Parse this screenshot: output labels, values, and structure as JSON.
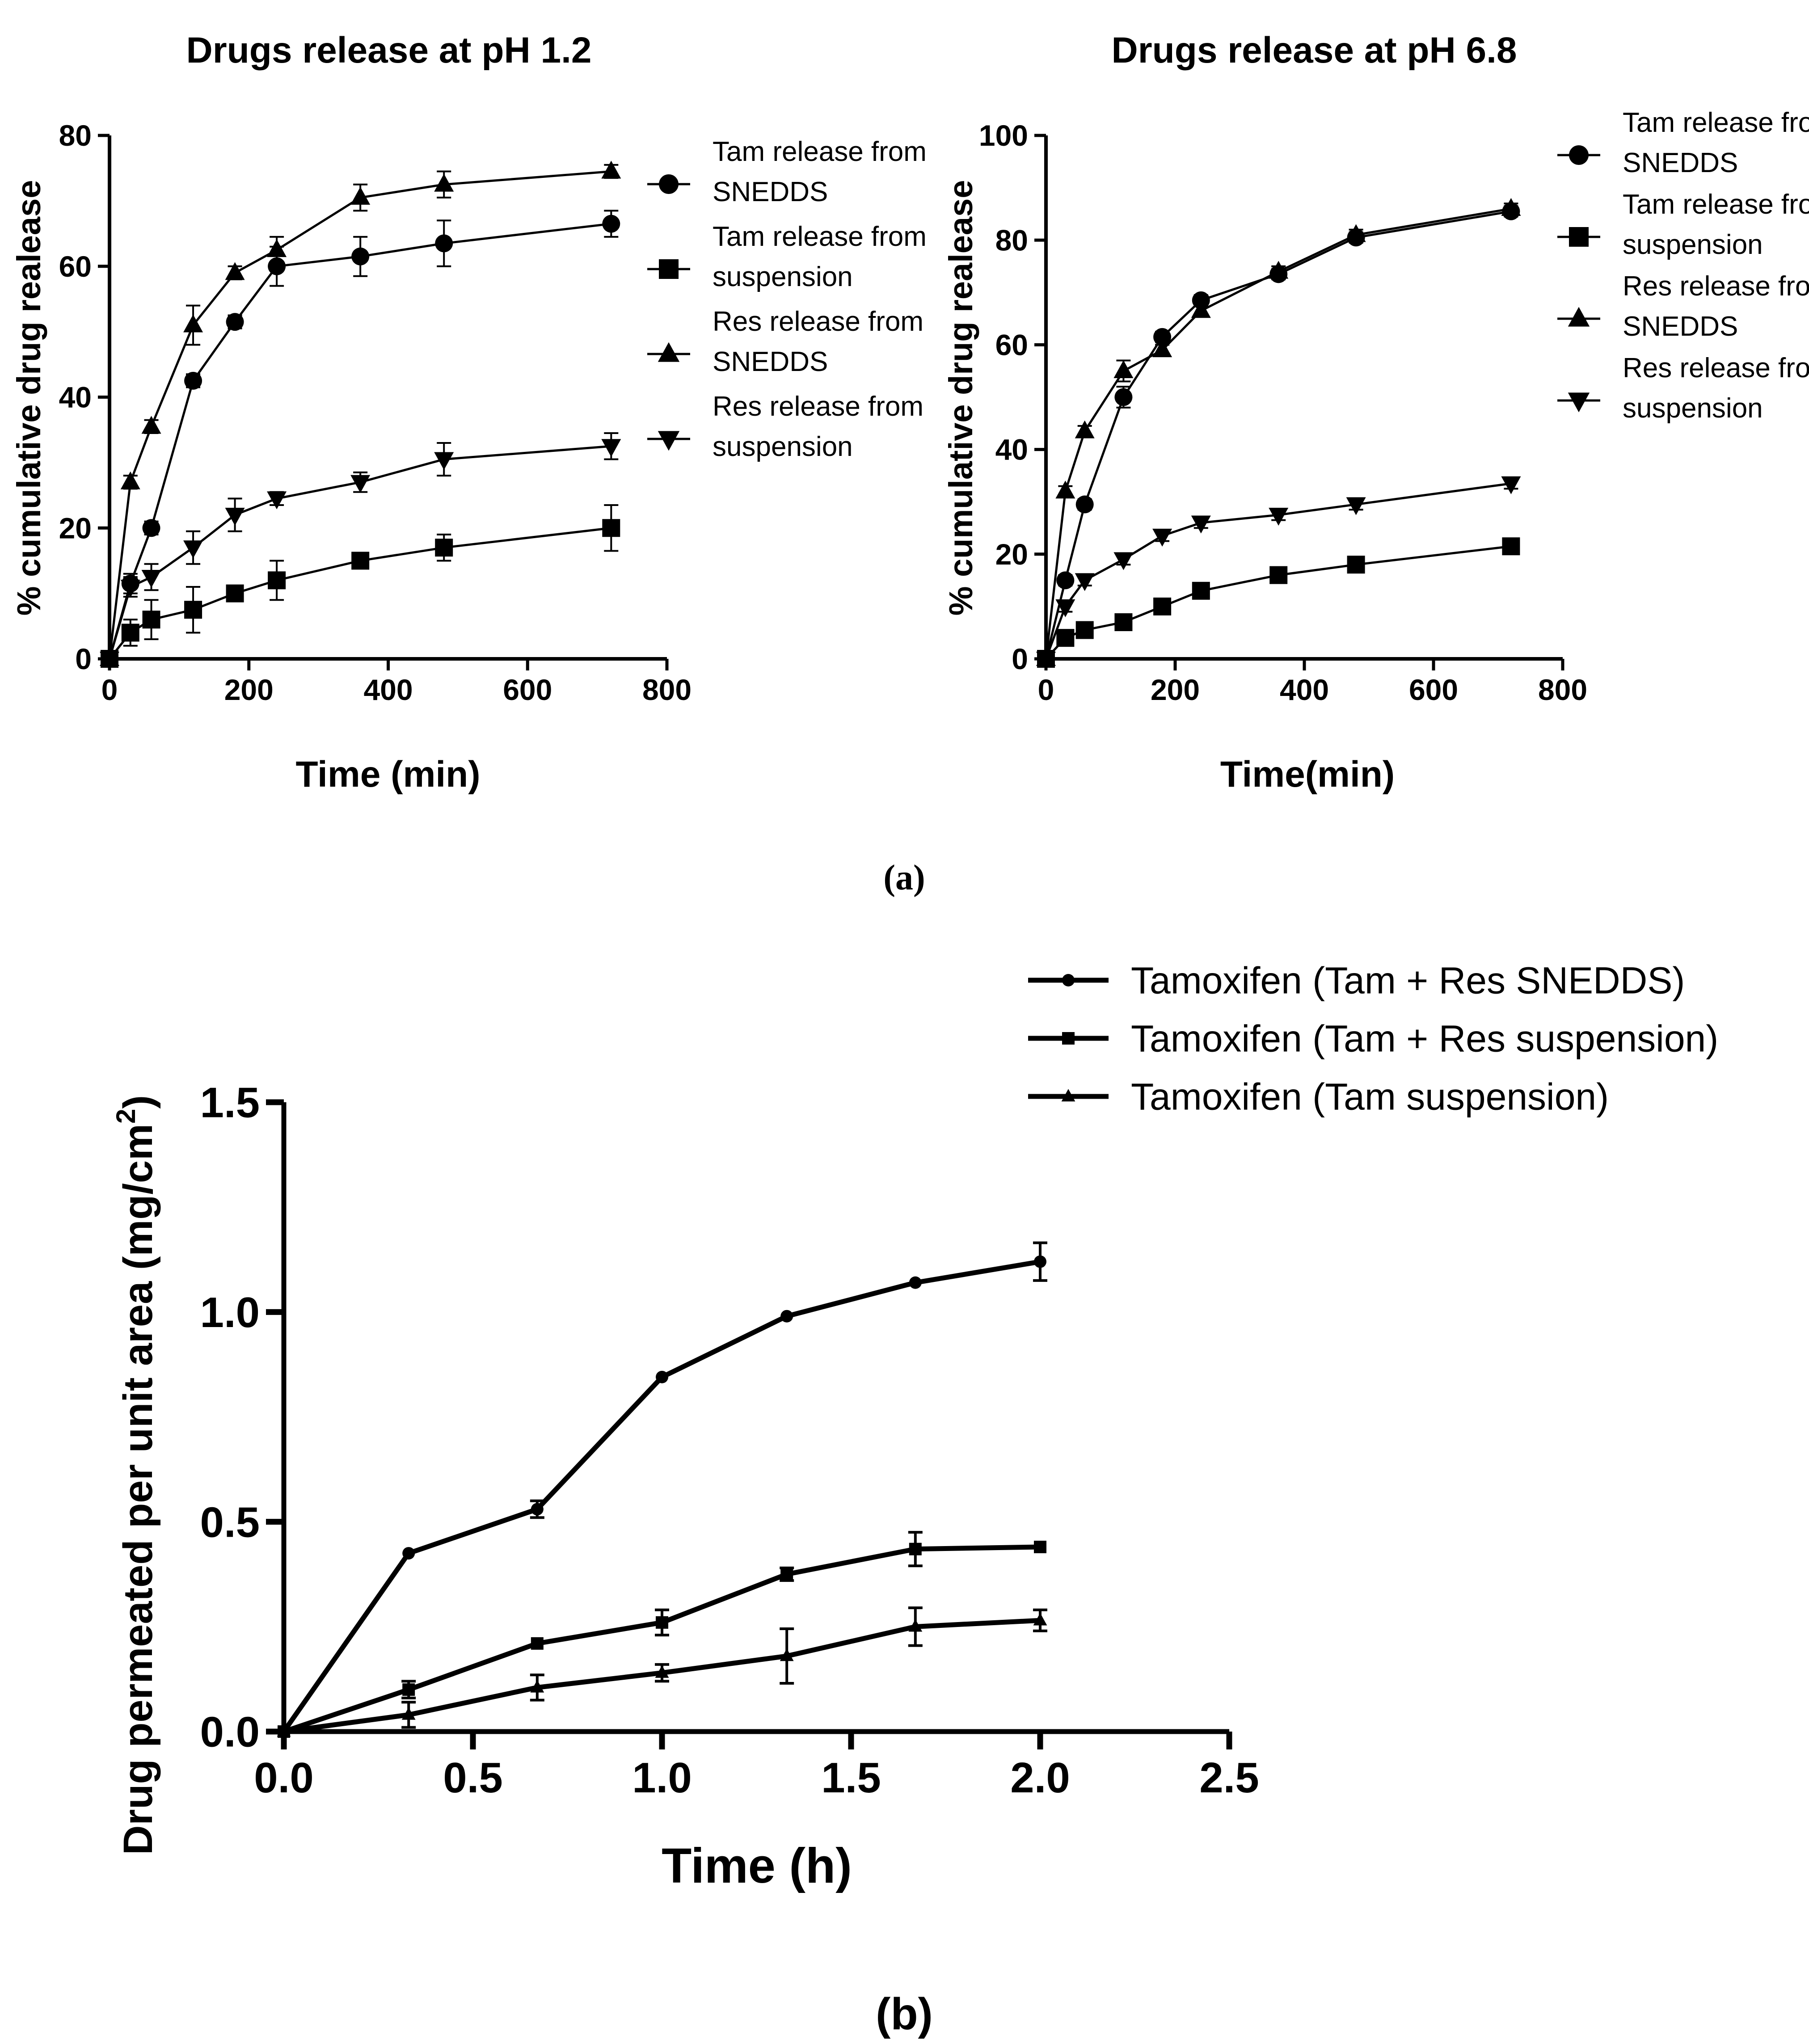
{
  "panel_labels": {
    "a": "(a)",
    "b": "(b)"
  },
  "chart_data": [
    {
      "id": "pH1",
      "type": "line",
      "title": "Drugs release at pH 1.2",
      "xlabel": "Time (min)",
      "ylabel": "% cumulative drug realease",
      "xlim": [
        0,
        800
      ],
      "ylim": [
        0,
        80
      ],
      "xticks": [
        0,
        200,
        400,
        600,
        800
      ],
      "yticks": [
        0,
        20,
        40,
        60,
        80
      ],
      "x": [
        0,
        30,
        60,
        120,
        180,
        240,
        360,
        480,
        720
      ],
      "series": [
        {
          "name": "Tam release from SNEDDS",
          "legend": [
            "Tam release from",
            "SNEDDS"
          ],
          "marker": "circle",
          "values": [
            0,
            11.5,
            20,
            42.5,
            51.5,
            60,
            61.5,
            63.5,
            66.5
          ],
          "errors": [
            0,
            1.5,
            1,
            1,
            1,
            3,
            3,
            3.5,
            2
          ]
        },
        {
          "name": "Tam release from suspension",
          "legend": [
            "Tam release from",
            "suspension"
          ],
          "marker": "square",
          "values": [
            0,
            4,
            6,
            7.5,
            10,
            12,
            15,
            17,
            20
          ],
          "errors": [
            0,
            2,
            3,
            3.5,
            1,
            3,
            1,
            2,
            3.5
          ]
        },
        {
          "name": "Res release from SNEDDS",
          "legend": [
            "Res release from",
            "SNEDDS"
          ],
          "marker": "triangle-up",
          "values": [
            0,
            27,
            35.5,
            51,
            59,
            62.5,
            70.5,
            72.5,
            74.5
          ],
          "errors": [
            0,
            1,
            1,
            3,
            1,
            2,
            2,
            2,
            1
          ]
        },
        {
          "name": "Res release from suspension",
          "legend": [
            "Res release from",
            "suspension"
          ],
          "marker": "triangle-down",
          "values": [
            0,
            11,
            12.5,
            17,
            22,
            24.5,
            27,
            30.5,
            32.5
          ],
          "errors": [
            0,
            1.5,
            2,
            2.5,
            2.5,
            1,
            1.5,
            2.5,
            2
          ]
        }
      ]
    },
    {
      "id": "pH6",
      "type": "line",
      "title": "Drugs release at pH 6.8",
      "xlabel": "Time(min)",
      "ylabel": "% cumulative drug realease",
      "xlim": [
        0,
        800
      ],
      "ylim": [
        0,
        100
      ],
      "xticks": [
        0,
        200,
        400,
        600,
        800
      ],
      "yticks": [
        0,
        20,
        40,
        60,
        80,
        100
      ],
      "x": [
        0,
        30,
        60,
        120,
        180,
        240,
        360,
        480,
        720
      ],
      "series": [
        {
          "name": "Tam release from SNEDDS",
          "legend": [
            "Tam release from",
            "SNEDDS"
          ],
          "marker": "circle",
          "values": [
            0,
            15,
            29.5,
            50,
            61.5,
            68.5,
            73.5,
            80.5,
            85.5
          ],
          "errors": [
            0,
            1,
            1,
            2,
            1,
            1,
            1,
            1,
            1
          ]
        },
        {
          "name": "Tam release from suspension",
          "legend": [
            "Tam release from",
            "suspension"
          ],
          "marker": "square",
          "values": [
            0,
            4,
            5.5,
            7,
            10,
            13,
            16,
            18,
            21.5
          ],
          "errors": [
            0,
            1,
            1,
            1,
            1,
            1,
            1,
            1,
            1
          ]
        },
        {
          "name": "Res release from SNEDDS",
          "legend": [
            "Res release from",
            "SNEDDS"
          ],
          "marker": "triangle-up",
          "values": [
            0,
            32,
            43.5,
            55,
            59,
            66.5,
            74,
            81,
            86
          ],
          "errors": [
            0,
            1,
            1,
            2,
            1,
            1,
            1,
            1,
            1
          ]
        },
        {
          "name": "Res release from suspension",
          "legend": [
            "Res release from",
            "suspension"
          ],
          "marker": "triangle-down",
          "values": [
            0,
            10,
            15,
            19,
            23.5,
            26,
            27.5,
            29.5,
            33.5
          ],
          "errors": [
            0,
            1,
            1,
            1,
            1,
            1,
            1,
            1,
            1
          ]
        }
      ]
    },
    {
      "id": "perm",
      "type": "line",
      "title": "",
      "xlabel": "Time (h)",
      "ylabel": "Drug permeated per unit area (mg/cm",
      "ylabel_sup": "2",
      "ylabel_end": ")",
      "xlim": [
        0,
        2.5
      ],
      "ylim": [
        0,
        1.5
      ],
      "xticks": [
        "0.0",
        "0.5",
        "1.0",
        "1.5",
        "2.0",
        "2.5"
      ],
      "yticks": [
        "0.0",
        "0.5",
        "1.0",
        "1.5"
      ],
      "x": [
        0,
        0.33,
        0.67,
        1.0,
        1.33,
        1.67,
        2.0
      ],
      "series": [
        {
          "name": "Tamoxifen (Tam + Res SNEDDS)",
          "marker": "circle",
          "values": [
            0,
            0.425,
            0.53,
            0.845,
            0.99,
            1.07,
            1.12
          ],
          "errors": [
            0,
            0,
            0.02,
            0,
            0,
            0,
            0.045
          ]
        },
        {
          "name": "Tamoxifen (Tam + Res suspension)",
          "marker": "square",
          "values": [
            0,
            0.1,
            0.21,
            0.26,
            0.375,
            0.435,
            0.44
          ],
          "errors": [
            0,
            0.02,
            0,
            0.03,
            0.015,
            0.04,
            0
          ]
        },
        {
          "name": "Tamoxifen (Tam suspension)",
          "marker": "triangle-up",
          "values": [
            0,
            0.04,
            0.105,
            0.14,
            0.18,
            0.25,
            0.265
          ],
          "errors": [
            0,
            0.03,
            0.03,
            0.02,
            0.065,
            0.045,
            0.025
          ]
        }
      ]
    }
  ]
}
